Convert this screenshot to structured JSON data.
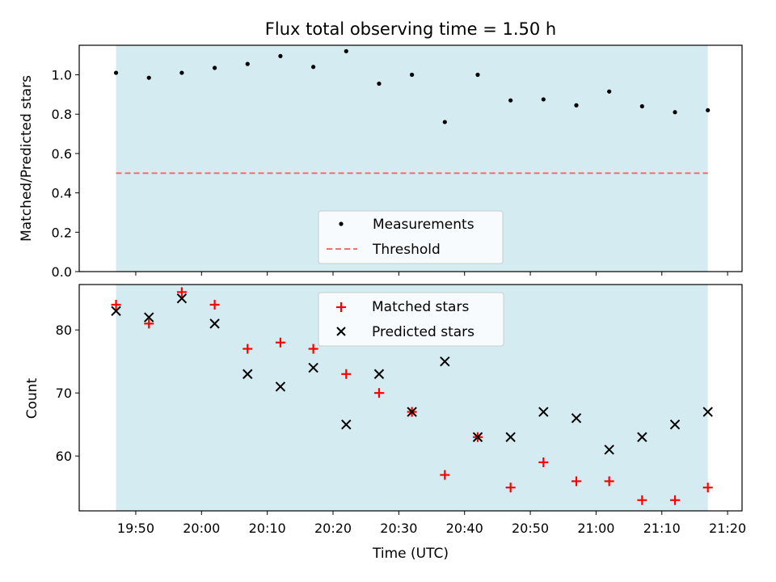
{
  "chart_data": [
    {
      "type": "scatter",
      "title": "Flux total observing time = 1.50 h",
      "xlabel": "",
      "ylabel": "Matched/Predicted stars",
      "xlim": [
        "19:41:24",
        "21:22:12"
      ],
      "ylim": [
        0,
        1.15
      ],
      "yticks": [
        0.0,
        0.2,
        0.4,
        0.6,
        0.8,
        1.0
      ],
      "ytick_labels": [
        "0.0",
        "0.2",
        "0.4",
        "0.6",
        "0.8",
        "1.0"
      ],
      "shaded_span": {
        "from": "19:47",
        "to": "21:17",
        "color": "#d4ebf1"
      },
      "grid": false,
      "legend_position": "lower-center",
      "series": [
        {
          "name": "Measurements",
          "marker": "dot",
          "color": "#000000",
          "x": [
            "19:47",
            "19:52",
            "19:57",
            "20:02",
            "20:07",
            "20:12",
            "20:17",
            "20:22",
            "20:27",
            "20:32",
            "20:37",
            "20:42",
            "20:47",
            "20:52",
            "20:57",
            "21:02",
            "21:07",
            "21:12",
            "21:17"
          ],
          "values": [
            1.01,
            0.985,
            1.01,
            1.035,
            1.055,
            1.095,
            1.04,
            1.12,
            0.955,
            1.0,
            0.76,
            1.0,
            0.87,
            0.875,
            0.845,
            0.915,
            0.84,
            0.81,
            0.82
          ]
        },
        {
          "name": "Threshold",
          "marker": "dashed-line",
          "color": "#f07070",
          "x": [
            "19:47",
            "21:17"
          ],
          "values": [
            0.5,
            0.5
          ]
        }
      ]
    },
    {
      "type": "scatter",
      "title": "",
      "xlabel": "Time (UTC)",
      "ylabel": "Count",
      "xlim": [
        "19:41:24",
        "21:22:12"
      ],
      "ylim": [
        51.3,
        87.2
      ],
      "yticks": [
        60,
        70,
        80
      ],
      "ytick_labels": [
        "60",
        "70",
        "80"
      ],
      "xticks": [
        "19:50",
        "20:00",
        "20:10",
        "20:20",
        "20:30",
        "20:40",
        "20:50",
        "21:00",
        "21:10",
        "21:20"
      ],
      "xtick_labels": [
        "19:50",
        "20:00",
        "20:10",
        "20:20",
        "20:30",
        "20:40",
        "20:50",
        "21:00",
        "21:10",
        "21:20"
      ],
      "shaded_span": {
        "from": "19:47",
        "to": "21:17",
        "color": "#d4ebf1"
      },
      "grid": false,
      "legend_position": "upper-center",
      "series": [
        {
          "name": "Matched stars",
          "marker": "plus",
          "color": "#ff0000",
          "x": [
            "19:47",
            "19:52",
            "19:57",
            "20:02",
            "20:07",
            "20:12",
            "20:17",
            "20:22",
            "20:27",
            "20:32",
            "20:37",
            "20:42",
            "20:47",
            "20:52",
            "20:57",
            "21:02",
            "21:07",
            "21:12",
            "21:17"
          ],
          "values": [
            84,
            81,
            86,
            84,
            77,
            78,
            77,
            73,
            70,
            67,
            57,
            63,
            55,
            59,
            56,
            56,
            53,
            53,
            55
          ]
        },
        {
          "name": "Predicted stars",
          "marker": "x",
          "color": "#000000",
          "x": [
            "19:47",
            "19:52",
            "19:57",
            "20:02",
            "20:07",
            "20:12",
            "20:17",
            "20:22",
            "20:27",
            "20:32",
            "20:37",
            "20:42",
            "20:47",
            "20:52",
            "20:57",
            "21:02",
            "21:07",
            "21:12",
            "21:17"
          ],
          "values": [
            83,
            82,
            85,
            81,
            73,
            71,
            74,
            65,
            73,
            67,
            75,
            63,
            63,
            67,
            66,
            61,
            63,
            65,
            67
          ]
        }
      ]
    }
  ]
}
